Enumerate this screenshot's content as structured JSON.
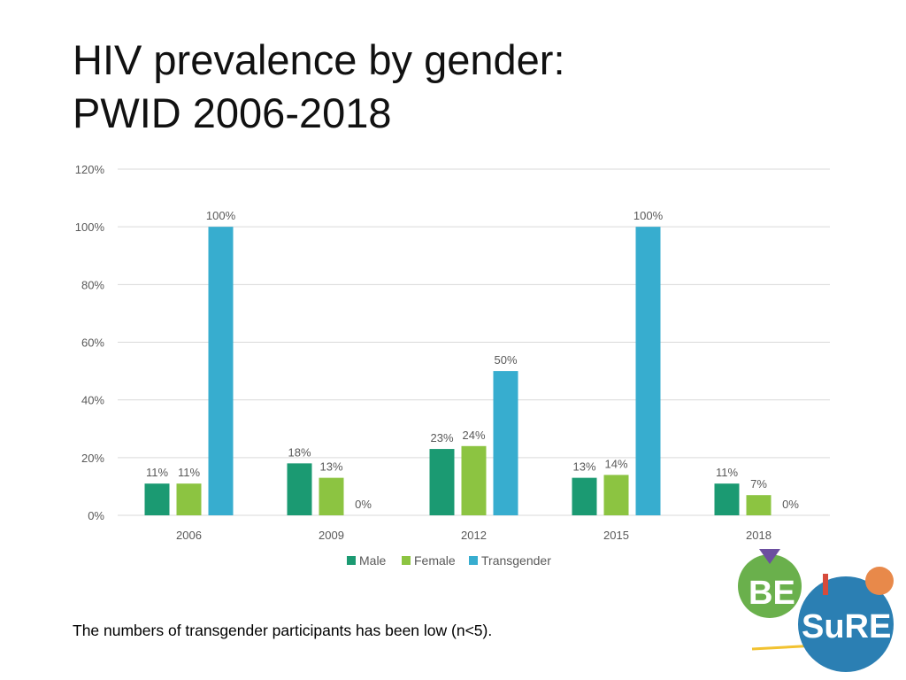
{
  "slide": {
    "title_line1": "HIV prevalence by gender:",
    "title_line2": "PWID 2006-2018",
    "footnote": "The numbers of transgender participants has been low (n<5)."
  },
  "colors": {
    "male": "#1b9a72",
    "female": "#8cc441",
    "transgender": "#37adcf",
    "grid": "#d9d9d9",
    "axis_text": "#595959"
  },
  "logo": {
    "be_text": "BE",
    "sure_text": "SuRE"
  },
  "chart_data": {
    "type": "bar",
    "title": "",
    "xlabel": "",
    "ylabel": "",
    "ylim": [
      0,
      1.2
    ],
    "y_ticks": [
      0,
      0.2,
      0.4,
      0.6,
      0.8,
      1.0,
      1.2
    ],
    "y_tick_labels": [
      "0%",
      "20%",
      "40%",
      "60%",
      "80%",
      "100%",
      "120%"
    ],
    "categories": [
      "2006",
      "2009",
      "2012",
      "2015",
      "2018"
    ],
    "legend_position": "bottom",
    "gridlines": true,
    "series": [
      {
        "name": "Male",
        "color_key": "male",
        "values": [
          0.11,
          0.18,
          0.23,
          0.13,
          0.11
        ],
        "labels": [
          "11%",
          "18%",
          "23%",
          "13%",
          "11%"
        ]
      },
      {
        "name": "Female",
        "color_key": "female",
        "values": [
          0.11,
          0.13,
          0.24,
          0.14,
          0.07
        ],
        "labels": [
          "11%",
          "13%",
          "24%",
          "14%",
          "7%"
        ]
      },
      {
        "name": "Transgender",
        "color_key": "transgender",
        "values": [
          1.0,
          0.0,
          0.5,
          1.0,
          0.0
        ],
        "labels": [
          "100%",
          "0%",
          "50%",
          "100%",
          "0%"
        ]
      }
    ]
  }
}
